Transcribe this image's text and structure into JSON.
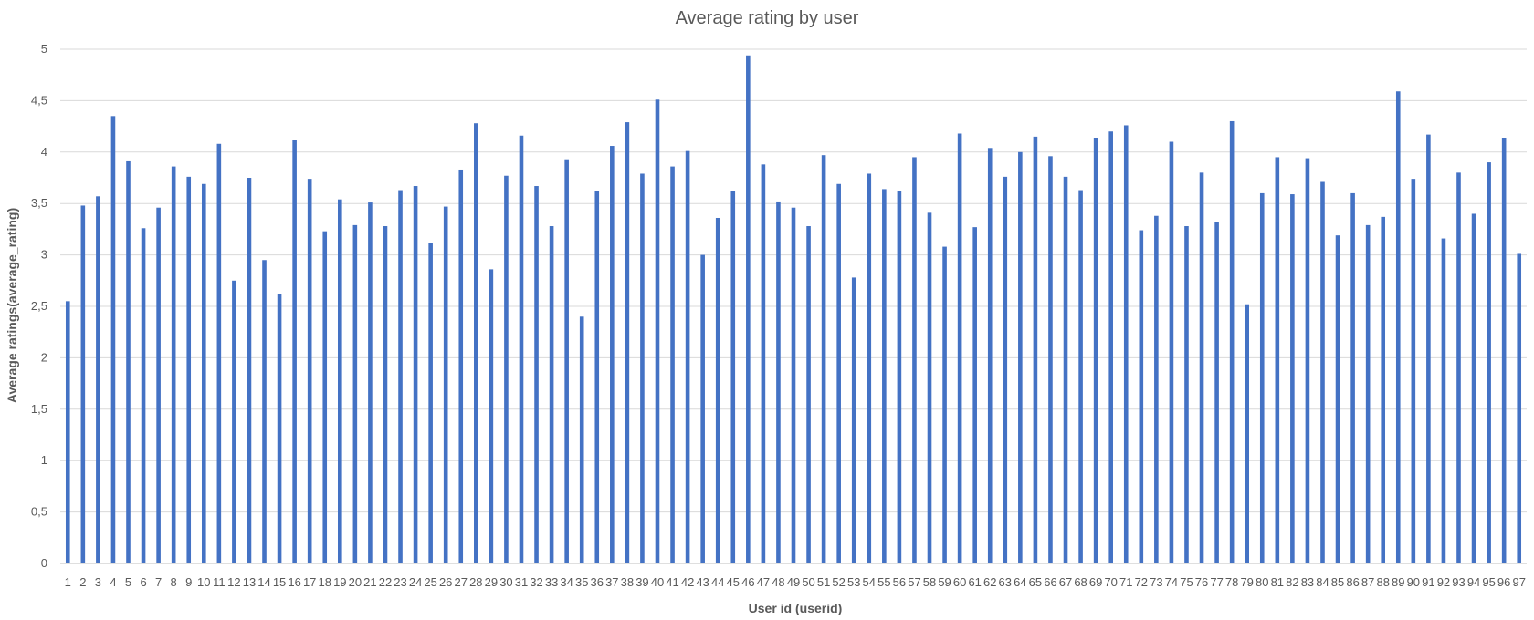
{
  "chart_data": {
    "type": "bar",
    "title": "Average rating by user",
    "xlabel": "User id (userid)",
    "ylabel": "Average ratings(average_rating)",
    "ylim": [
      0,
      5
    ],
    "yticks": [
      "0",
      "0,5",
      "1",
      "1,5",
      "2",
      "2,5",
      "3",
      "3,5",
      "4",
      "4,5",
      "5"
    ],
    "grid": true,
    "bar_color": "#4472c4",
    "categories": [
      "1",
      "2",
      "3",
      "4",
      "5",
      "6",
      "7",
      "8",
      "9",
      "10",
      "11",
      "12",
      "13",
      "14",
      "15",
      "16",
      "17",
      "18",
      "19",
      "20",
      "21",
      "22",
      "23",
      "24",
      "25",
      "26",
      "27",
      "28",
      "29",
      "30",
      "31",
      "32",
      "33",
      "34",
      "35",
      "36",
      "37",
      "38",
      "39",
      "40",
      "41",
      "42",
      "43",
      "44",
      "45",
      "46",
      "47",
      "48",
      "49",
      "50",
      "51",
      "52",
      "53",
      "54",
      "55",
      "56",
      "57",
      "58",
      "59",
      "60",
      "61",
      "62",
      "63",
      "64",
      "65",
      "66",
      "67",
      "68",
      "69",
      "70",
      "71",
      "72",
      "73",
      "74",
      "75",
      "76",
      "77",
      "78",
      "79",
      "80",
      "81",
      "82",
      "83",
      "84",
      "85",
      "86",
      "87",
      "88",
      "89",
      "90",
      "91",
      "92",
      "93",
      "94",
      "95",
      "96",
      "97"
    ],
    "values": [
      2.55,
      3.48,
      3.57,
      4.35,
      3.91,
      3.26,
      3.46,
      3.86,
      3.76,
      3.69,
      4.08,
      2.75,
      3.75,
      2.95,
      2.62,
      4.12,
      3.74,
      3.23,
      3.54,
      3.29,
      3.51,
      3.28,
      3.63,
      3.67,
      3.12,
      3.47,
      3.83,
      4.28,
      2.86,
      3.77,
      4.16,
      3.67,
      3.28,
      3.93,
      2.4,
      3.62,
      4.06,
      4.29,
      3.79,
      4.51,
      3.86,
      4.01,
      3.0,
      3.36,
      3.62,
      4.94,
      3.88,
      3.52,
      3.46,
      3.28,
      3.97,
      3.69,
      2.78,
      3.79,
      3.64,
      3.62,
      3.95,
      3.41,
      3.08,
      4.18,
      3.27,
      4.04,
      3.76,
      4.0,
      4.15,
      3.96,
      3.76,
      3.63,
      4.14,
      4.2,
      4.26,
      3.24,
      3.38,
      4.1,
      3.28,
      3.8,
      3.32,
      4.3,
      2.52,
      3.6,
      3.95,
      3.59,
      3.94,
      3.71,
      3.19,
      3.6,
      3.29,
      3.37,
      4.59,
      3.74,
      4.17,
      3.16,
      3.8,
      3.4,
      3.9,
      4.14,
      3.01
    ]
  }
}
